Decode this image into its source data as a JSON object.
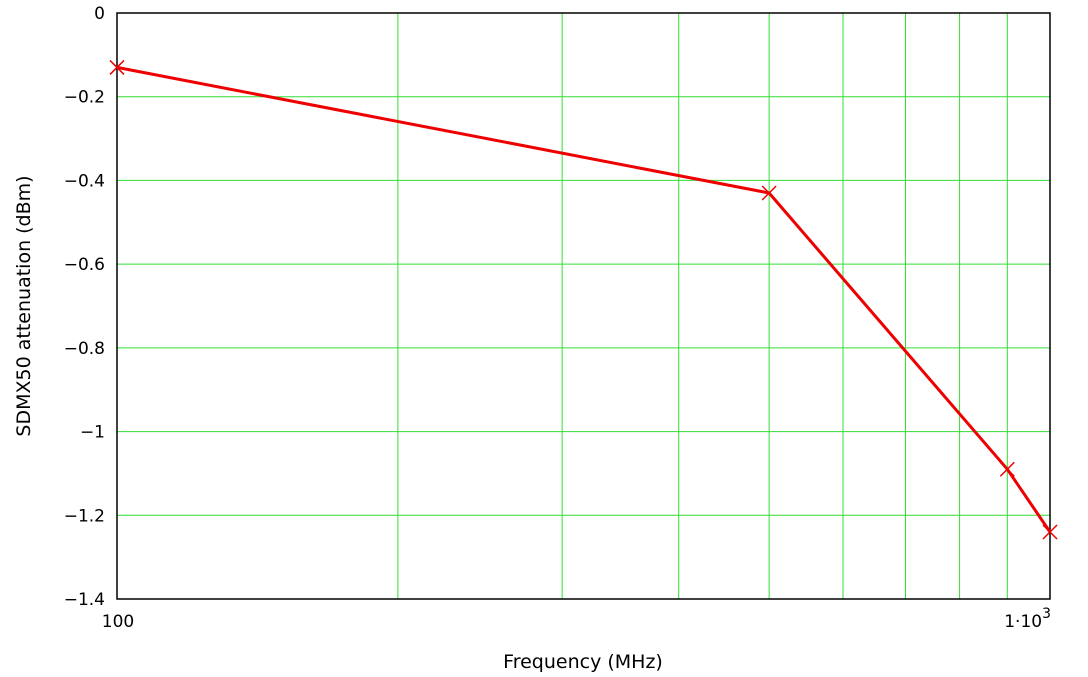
{
  "chart_data": {
    "type": "line",
    "xlabel": "Frequency (MHz)",
    "ylabel": "SDMX50 attenuation (dBm)",
    "x_scale": "log",
    "xlim": [
      100,
      1000
    ],
    "ylim": [
      -1.4,
      0
    ],
    "x_ticks": [
      {
        "value": 100,
        "label": "100"
      },
      {
        "value": 1000,
        "label": "1·10",
        "sup": "3"
      }
    ],
    "y_ticks": [
      {
        "value": 0,
        "label": "0"
      },
      {
        "value": -0.2,
        "label": "−0.2"
      },
      {
        "value": -0.4,
        "label": "−0.4"
      },
      {
        "value": -0.6,
        "label": "−0.6"
      },
      {
        "value": -0.8,
        "label": "−0.8"
      },
      {
        "value": -1,
        "label": "−1"
      },
      {
        "value": -1.2,
        "label": "−1.2"
      },
      {
        "value": -1.4,
        "label": "−1.4"
      }
    ],
    "x_gridlines": [
      100,
      200,
      300,
      400,
      500,
      600,
      700,
      800,
      900,
      1000
    ],
    "grid": true,
    "series": [
      {
        "color": "#ee0000",
        "marker": "x",
        "points": [
          {
            "x": 100,
            "y": -0.13
          },
          {
            "x": 500,
            "y": -0.43
          },
          {
            "x": 900,
            "y": -1.09
          },
          {
            "x": 1000,
            "y": -1.24
          }
        ]
      }
    ],
    "colors": {
      "grid": "#33dd33",
      "frame": "#000000",
      "line": "#ee0000"
    }
  }
}
